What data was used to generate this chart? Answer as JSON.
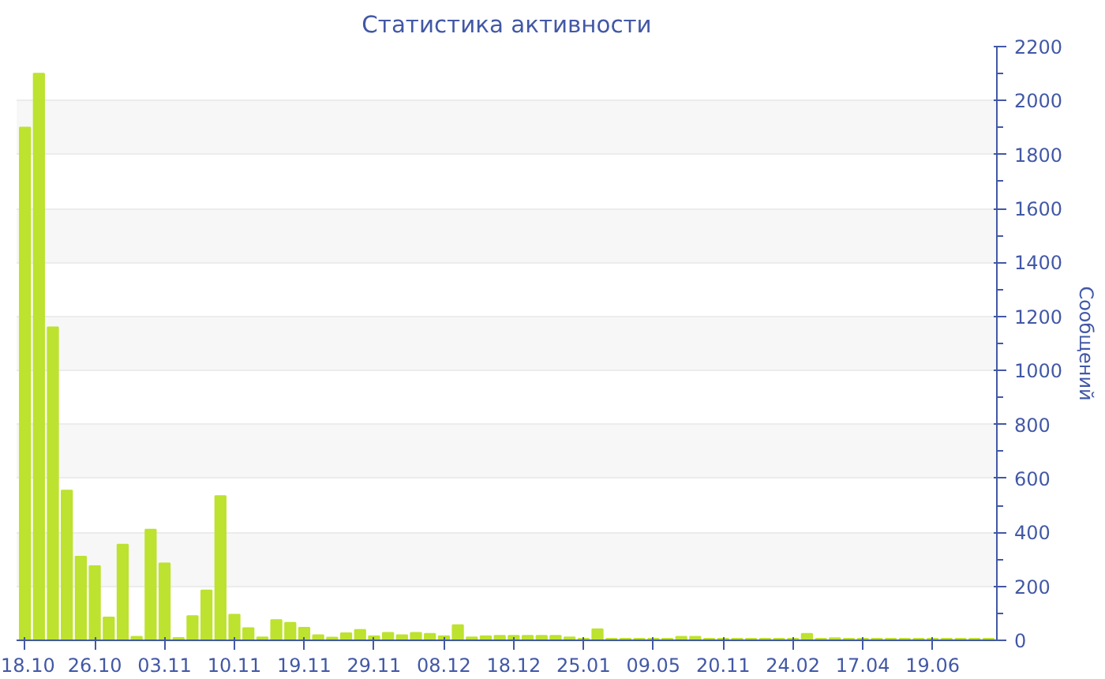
{
  "chart_data": {
    "type": "bar",
    "title": "Статистика активности",
    "ylabel": "Сообщений",
    "categories": [
      "18.10",
      null,
      null,
      null,
      null,
      "26.10",
      null,
      null,
      null,
      null,
      "03.11",
      null,
      null,
      null,
      null,
      "10.11",
      null,
      null,
      null,
      null,
      "19.11",
      null,
      null,
      null,
      null,
      "29.11",
      null,
      null,
      null,
      null,
      "08.12",
      null,
      null,
      null,
      null,
      "18.12",
      null,
      null,
      null,
      null,
      "25.01",
      null,
      null,
      null,
      null,
      "09.05",
      null,
      null,
      null,
      null,
      "20.11",
      null,
      null,
      null,
      null,
      "24.02",
      null,
      null,
      null,
      null,
      "17.04",
      null,
      null,
      null,
      null,
      "19.06",
      null,
      null,
      null,
      null
    ],
    "values": [
      1900,
      2100,
      1160,
      555,
      310,
      275,
      85,
      355,
      13,
      410,
      285,
      9,
      90,
      185,
      535,
      95,
      45,
      11,
      75,
      65,
      47,
      19,
      10,
      26,
      39,
      15,
      28,
      19,
      28,
      24,
      15,
      56,
      11,
      15,
      17,
      17,
      17,
      17,
      17,
      11,
      6,
      41,
      6,
      6,
      6,
      6,
      6,
      13,
      13,
      6,
      6,
      6,
      6,
      6,
      6,
      6,
      24,
      6,
      8,
      6,
      6,
      6,
      6,
      6,
      6,
      6,
      6,
      6,
      6,
      6
    ],
    "color": "#bde22f",
    "ylim": [
      0,
      2200
    ],
    "yticks": [
      0,
      200,
      400,
      600,
      800,
      1000,
      1200,
      1400,
      1600,
      1800,
      2000,
      2200
    ],
    "grid": true
  }
}
